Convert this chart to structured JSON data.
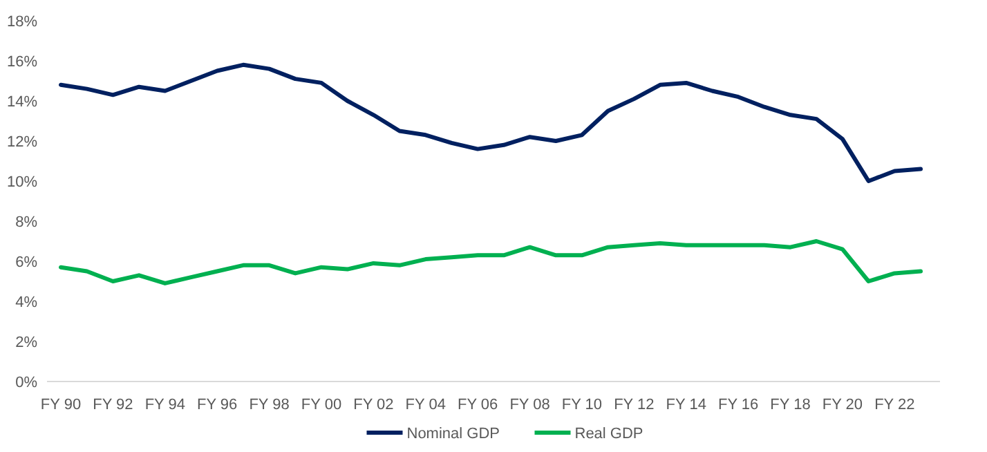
{
  "chart_data": {
    "type": "line",
    "categories": [
      "FY 90",
      null,
      "FY 92",
      null,
      "FY 94",
      null,
      "FY 96",
      null,
      "FY 98",
      null,
      "FY 00",
      null,
      "FY 02",
      null,
      "FY 04",
      null,
      "FY 06",
      null,
      "FY 08",
      null,
      "FY 10",
      null,
      "FY 12",
      null,
      "FY 14",
      null,
      "FY 16",
      null,
      "FY 18",
      null,
      "FY 20",
      null,
      "FY 22",
      null
    ],
    "series": [
      {
        "name": "Nominal GDP",
        "color": "#002060",
        "values": [
          14.8,
          14.6,
          14.3,
          14.7,
          14.5,
          15.0,
          15.5,
          15.8,
          15.6,
          15.1,
          14.9,
          14.0,
          13.3,
          12.5,
          12.3,
          11.9,
          11.6,
          11.8,
          12.2,
          12.0,
          12.3,
          13.5,
          14.1,
          14.8,
          14.9,
          14.5,
          14.2,
          13.7,
          13.3,
          13.1,
          12.1,
          10.0,
          10.5,
          10.6
        ]
      },
      {
        "name": "Real GDP",
        "color": "#00b050",
        "values": [
          5.7,
          5.5,
          5.0,
          5.3,
          4.9,
          5.2,
          5.5,
          5.8,
          5.8,
          5.4,
          5.7,
          5.6,
          5.9,
          5.8,
          6.1,
          6.2,
          6.3,
          6.3,
          6.7,
          6.3,
          6.3,
          6.7,
          6.8,
          6.9,
          6.8,
          6.8,
          6.8,
          6.8,
          6.7,
          7.0,
          6.6,
          5.0,
          5.4,
          5.5
        ]
      }
    ],
    "ylim": [
      0,
      18
    ],
    "yticks": [
      {
        "value": 0,
        "label": "0%"
      },
      {
        "value": 2,
        "label": "2%"
      },
      {
        "value": 4,
        "label": "4%"
      },
      {
        "value": 6,
        "label": "6%"
      },
      {
        "value": 8,
        "label": "8%"
      },
      {
        "value": 10,
        "label": "10%"
      },
      {
        "value": 12,
        "label": "12%"
      },
      {
        "value": 14,
        "label": "14%"
      },
      {
        "value": 16,
        "label": "16%"
      },
      {
        "value": 18,
        "label": "18%"
      }
    ],
    "grid": false,
    "legend": "bottom",
    "marker": "none",
    "line_style": "solid"
  }
}
